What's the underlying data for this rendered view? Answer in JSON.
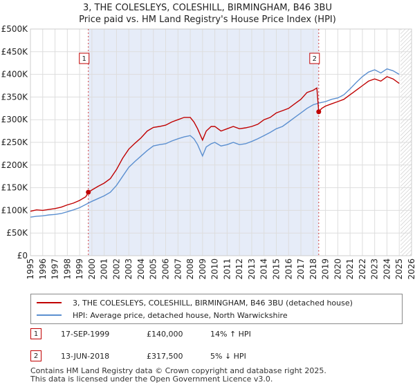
{
  "title_line1": "3, THE COLESLEYS, COLESHILL, BIRMINGHAM, B46 3BU",
  "title_line2": "Price paid vs. HM Land Registry's House Price Index (HPI)",
  "colors": {
    "price": "#c00000",
    "hpi": "#5b8fd0",
    "shade": "#e6ecf8",
    "grid": "#dddddd",
    "marker_line": "#d04040"
  },
  "chart_data": {
    "type": "line",
    "xlim": [
      1995,
      2026
    ],
    "ylim": [
      0,
      500000
    ],
    "y_ticks": [
      0,
      50000,
      100000,
      150000,
      200000,
      250000,
      300000,
      350000,
      400000,
      450000,
      500000
    ],
    "y_tick_labels": [
      "£0",
      "£50K",
      "£100K",
      "£150K",
      "£200K",
      "£250K",
      "£300K",
      "£350K",
      "£400K",
      "£450K",
      "£500K"
    ],
    "x_ticks": [
      1995,
      1996,
      1997,
      1998,
      1999,
      2000,
      2001,
      2002,
      2003,
      2004,
      2005,
      2006,
      2007,
      2008,
      2009,
      2010,
      2011,
      2012,
      2013,
      2014,
      2015,
      2016,
      2017,
      2018,
      2019,
      2020,
      2021,
      2022,
      2023,
      2024,
      2025,
      2026
    ],
    "x_tick_labels": [
      "1995",
      "1996",
      "1997",
      "1998",
      "1999",
      "2000",
      "2001",
      "2002",
      "2003",
      "2004",
      "2005",
      "2006",
      "2007",
      "2008",
      "2009",
      "2010",
      "2011",
      "2012",
      "2013",
      "2014",
      "2015",
      "2016",
      "2017",
      "2018",
      "2019",
      "2020",
      "2021",
      "2022",
      "2023",
      "2024",
      "2025",
      "2026"
    ],
    "shaded_span": [
      1999.71,
      2018.45
    ],
    "hatch_from": 2025.1,
    "series": [
      {
        "name": "3, THE COLESLEYS, COLESHILL, BIRMINGHAM, B46 3BU (detached house)",
        "color": "#c00000",
        "x": [
          1995.0,
          1995.5,
          1996.0,
          1996.5,
          1997.0,
          1997.5,
          1998.0,
          1998.5,
          1999.0,
          1999.5,
          1999.71,
          2000.0,
          2000.5,
          2001.0,
          2001.5,
          2002.0,
          2002.5,
          2003.0,
          2003.5,
          2004.0,
          2004.5,
          2005.0,
          2005.5,
          2006.0,
          2006.5,
          2007.0,
          2007.5,
          2008.0,
          2008.3,
          2008.6,
          2009.0,
          2009.3,
          2009.7,
          2010.0,
          2010.5,
          2011.0,
          2011.5,
          2012.0,
          2012.5,
          2013.0,
          2013.5,
          2014.0,
          2014.5,
          2015.0,
          2015.5,
          2016.0,
          2016.5,
          2017.0,
          2017.5,
          2018.0,
          2018.3,
          2018.45,
          2018.7,
          2019.0,
          2019.5,
          2020.0,
          2020.5,
          2021.0,
          2021.5,
          2022.0,
          2022.5,
          2023.0,
          2023.5,
          2024.0,
          2024.5,
          2025.0
        ],
        "values": [
          98000,
          101000,
          100000,
          102000,
          104000,
          107000,
          112000,
          116000,
          122000,
          130000,
          140000,
          145000,
          153000,
          160000,
          170000,
          190000,
          215000,
          235000,
          248000,
          260000,
          275000,
          283000,
          285000,
          288000,
          295000,
          300000,
          305000,
          305000,
          295000,
          280000,
          255000,
          275000,
          285000,
          285000,
          275000,
          280000,
          285000,
          280000,
          282000,
          285000,
          290000,
          300000,
          305000,
          315000,
          320000,
          325000,
          335000,
          345000,
          360000,
          365000,
          370000,
          317500,
          325000,
          330000,
          335000,
          340000,
          345000,
          355000,
          365000,
          375000,
          385000,
          390000,
          385000,
          395000,
          390000,
          380000
        ]
      },
      {
        "name": "HPI: Average price, detached house, North Warwickshire",
        "color": "#5b8fd0",
        "x": [
          1995.0,
          1995.5,
          1996.0,
          1996.5,
          1997.0,
          1997.5,
          1998.0,
          1998.5,
          1999.0,
          1999.5,
          2000.0,
          2000.5,
          2001.0,
          2001.5,
          2002.0,
          2002.5,
          2003.0,
          2003.5,
          2004.0,
          2004.5,
          2005.0,
          2005.5,
          2006.0,
          2006.5,
          2007.0,
          2007.5,
          2008.0,
          2008.3,
          2008.6,
          2009.0,
          2009.3,
          2009.7,
          2010.0,
          2010.5,
          2011.0,
          2011.5,
          2012.0,
          2012.5,
          2013.0,
          2013.5,
          2014.0,
          2014.5,
          2015.0,
          2015.5,
          2016.0,
          2016.5,
          2017.0,
          2017.5,
          2018.0,
          2018.5,
          2019.0,
          2019.5,
          2020.0,
          2020.5,
          2021.0,
          2021.5,
          2022.0,
          2022.5,
          2023.0,
          2023.5,
          2024.0,
          2024.5,
          2025.0
        ],
        "values": [
          85000,
          87000,
          88000,
          90000,
          91000,
          93000,
          97000,
          101000,
          106000,
          113000,
          120000,
          126000,
          132000,
          140000,
          155000,
          175000,
          195000,
          208000,
          220000,
          232000,
          242000,
          245000,
          247000,
          253000,
          258000,
          262000,
          265000,
          258000,
          245000,
          220000,
          240000,
          247000,
          250000,
          242000,
          245000,
          250000,
          245000,
          247000,
          252000,
          258000,
          265000,
          272000,
          280000,
          285000,
          295000,
          305000,
          315000,
          325000,
          333000,
          337000,
          340000,
          345000,
          348000,
          355000,
          368000,
          382000,
          395000,
          405000,
          410000,
          403000,
          412000,
          408000,
          400000
        ]
      }
    ],
    "transactions": [
      {
        "label": "1",
        "date": "17-SEP-1999",
        "x": 1999.71,
        "price": 140000,
        "price_label": "£140,000",
        "hpi_change": "14% ↑ HPI"
      },
      {
        "label": "2",
        "date": "13-JUN-2018",
        "x": 2018.45,
        "price": 317500,
        "price_label": "£317,500",
        "hpi_change": "5% ↓ HPI"
      }
    ]
  },
  "legend": {
    "price_label": "3, THE COLESLEYS, COLESHILL, BIRMINGHAM, B46 3BU (detached house)",
    "hpi_label": "HPI: Average price, detached house, North Warwickshire"
  },
  "footer_line1": "Contains HM Land Registry data © Crown copyright and database right 2025.",
  "footer_line2": "This data is licensed under the Open Government Licence v3.0."
}
